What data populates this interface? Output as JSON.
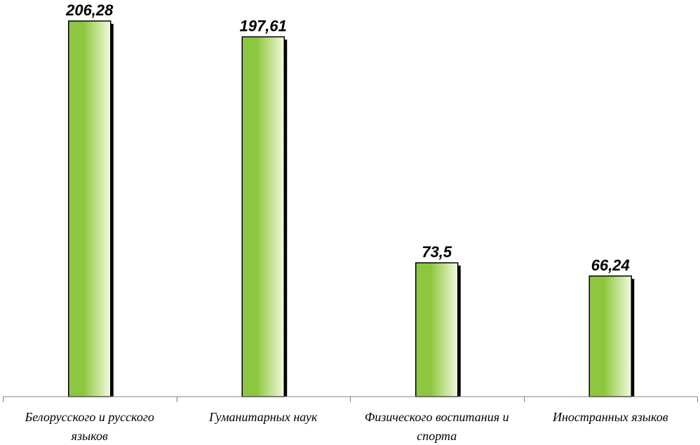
{
  "chart_data": {
    "type": "bar",
    "categories": [
      [
        "Белорусского и русского",
        "языков"
      ],
      [
        "Гуманитарных наук"
      ],
      [
        "Физического воспитания и",
        "спорта"
      ],
      [
        "Иностранных языков"
      ]
    ],
    "values": [
      206.28,
      197.61,
      73.5,
      66.24
    ],
    "value_labels": [
      "206,28",
      "197,61",
      "73,5",
      "66,24"
    ],
    "title": "",
    "xlabel": "",
    "ylabel": "",
    "ylim": [
      0,
      206.28
    ],
    "grid": false,
    "legend": "none",
    "colors": {
      "bar_dark": "#8dc63f",
      "bar_light": "#f4f9e0",
      "bar_outline": "#000000",
      "shadow": "#000000"
    }
  }
}
